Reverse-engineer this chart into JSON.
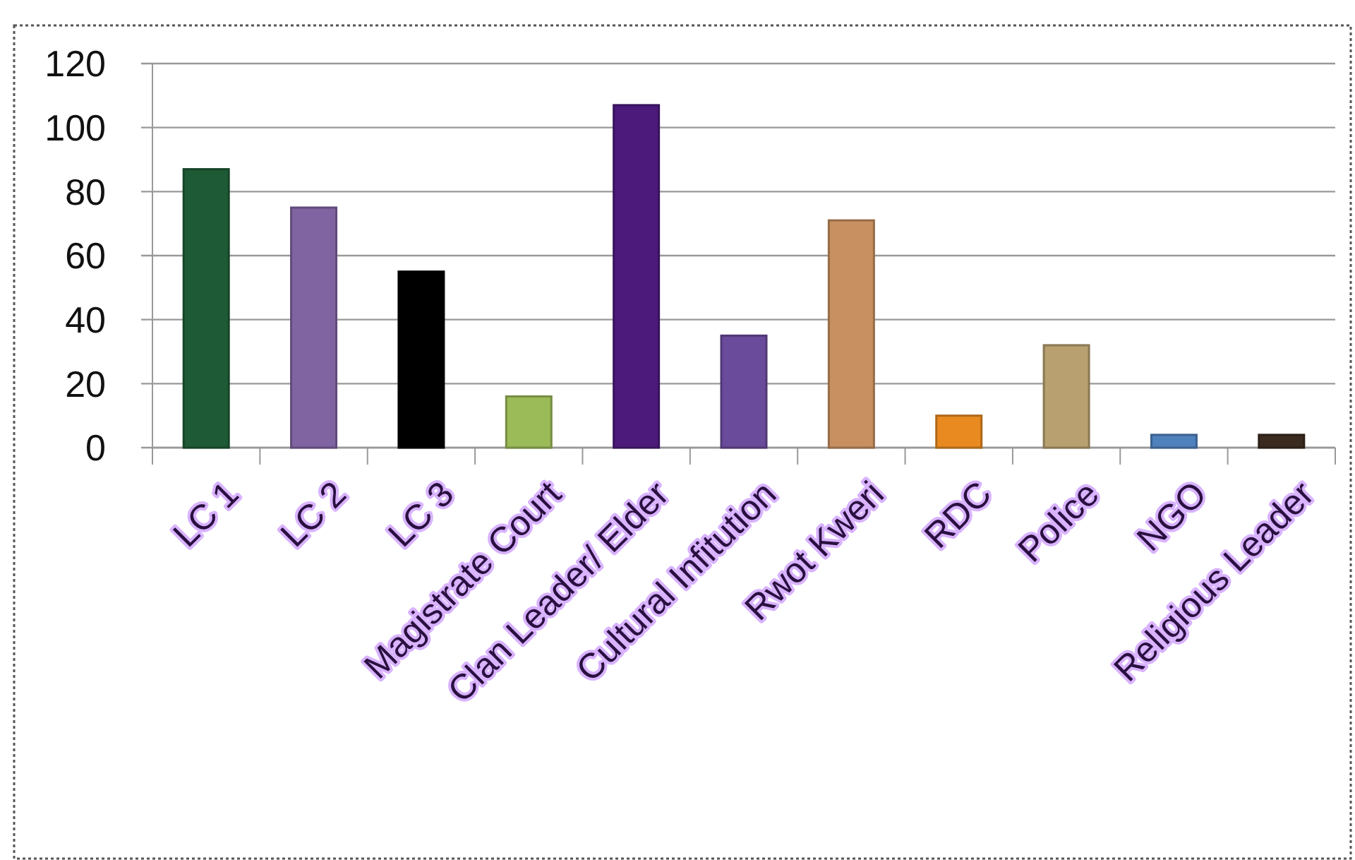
{
  "chart_data": {
    "type": "bar",
    "categories": [
      "LC 1",
      "LC 2",
      "LC 3",
      "Magistrate Court",
      "Clan Leader/ Elder",
      "Cultural Infitution",
      "Rwot Kweri",
      "RDC",
      "Police",
      "NGO",
      "Religious Leader"
    ],
    "values": [
      87,
      75,
      55,
      16,
      107,
      35,
      71,
      10,
      32,
      4,
      4
    ],
    "colors": [
      "#1e5a35",
      "#8064a2",
      "#000000",
      "#9bbb59",
      "#4b1a7a",
      "#6a4a9a",
      "#c89060",
      "#e88a20",
      "#b8a070",
      "#4f81bd",
      "#3b2a20"
    ],
    "ylim": [
      0,
      120
    ],
    "yticks": [
      0,
      20,
      40,
      60,
      80,
      100,
      120
    ],
    "grid": "y"
  }
}
